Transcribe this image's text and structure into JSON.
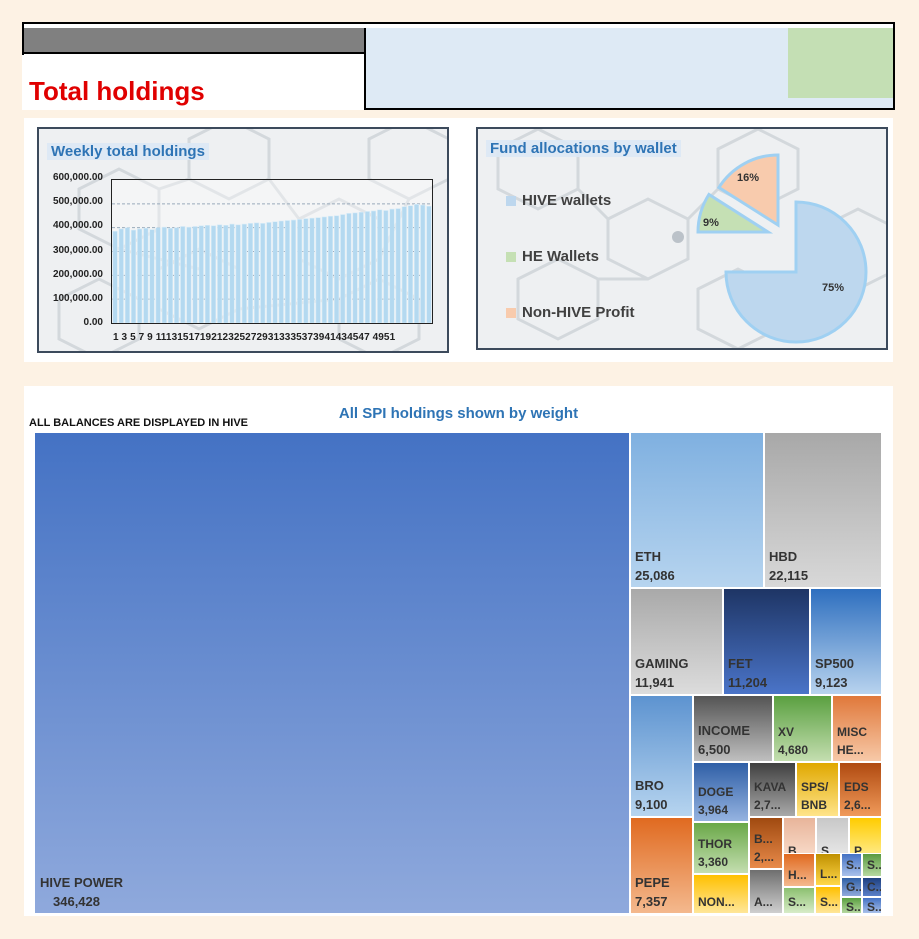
{
  "header": {
    "title": "Total holdings"
  },
  "weekly_chart": {
    "title": "Weekly total holdings",
    "chart_data": {
      "type": "bar",
      "title": "Weekly total holdings",
      "xlabel": "",
      "ylabel": "",
      "ylim": [
        0,
        600000
      ],
      "grid": true,
      "y_ticks": [
        "0.00",
        "100,000.00",
        "200,000.00",
        "300,000.00",
        "400,000.00",
        "500,000.00",
        "600,000.00"
      ],
      "x_ticks_label": "1 3 5 7 9 11131517192123252729313335373941434547 4951",
      "categories": [
        1,
        2,
        3,
        4,
        5,
        6,
        7,
        8,
        9,
        10,
        11,
        12,
        13,
        14,
        15,
        16,
        17,
        18,
        19,
        20,
        21,
        22,
        23,
        24,
        25,
        26,
        27,
        28,
        29,
        30,
        31,
        32,
        33,
        34,
        35,
        36,
        37,
        38,
        39,
        40,
        41,
        42,
        43,
        44,
        45,
        46,
        47,
        48,
        49,
        50,
        51,
        52
      ],
      "values": [
        385000,
        395000,
        400000,
        390000,
        395000,
        398000,
        392000,
        400000,
        402000,
        398000,
        400000,
        405000,
        402000,
        405000,
        408000,
        410000,
        408000,
        412000,
        410000,
        415000,
        412000,
        415000,
        418000,
        420000,
        418000,
        422000,
        425000,
        428000,
        430000,
        432000,
        435000,
        438000,
        440000,
        442000,
        445000,
        448000,
        450000,
        455000,
        460000,
        462000,
        465000,
        468000,
        470000,
        475000,
        472000,
        478000,
        480000,
        488000,
        492000,
        498000,
        495000,
        490000
      ]
    }
  },
  "alloc_chart": {
    "title": "Fund allocations by wallet",
    "chart_data": {
      "type": "pie",
      "title": "Fund allocations by wallet",
      "legend_position": "left",
      "slices": [
        {
          "label": "HIVE wallets",
          "value": 75,
          "text": "75%",
          "color": "#bdd7ee"
        },
        {
          "label": "HE Wallets",
          "value": 9,
          "text": "9%",
          "color": "#c5e0b4"
        },
        {
          "label": "Non-HIVE Profit",
          "value": 16,
          "text": "16%",
          "color": "#f8cbad"
        }
      ]
    }
  },
  "treemap": {
    "title": "All SPI holdings shown by weight",
    "note": "ALL BALANCES ARE DISPLAYED IN HIVE",
    "chart_data": {
      "type": "treemap",
      "items": [
        {
          "name": "HIVE POWER",
          "value": "346,428"
        },
        {
          "name": "ETH",
          "value": "25,086"
        },
        {
          "name": "HBD",
          "value": "22,115"
        },
        {
          "name": "GAMING",
          "value": "11,941"
        },
        {
          "name": "FET",
          "value": "11,204"
        },
        {
          "name": "SP500",
          "value": "9,123"
        },
        {
          "name": "BRO",
          "value": "9,100"
        },
        {
          "name": "INCOME",
          "value": "6,500"
        },
        {
          "name": "XV",
          "value": "4,680"
        },
        {
          "name": "MISC",
          "value": "HE..."
        },
        {
          "name": "DOGE",
          "value": "3,964"
        },
        {
          "name": "KAVA",
          "value": "2,7..."
        },
        {
          "name": "SPS/",
          "value": "BNB"
        },
        {
          "name": "EDS",
          "value": "2,6..."
        },
        {
          "name": "THOR",
          "value": "3,360"
        },
        {
          "name": "B...",
          "value": "2,..."
        },
        {
          "name": "B...",
          "value": ""
        },
        {
          "name": "S...",
          "value": ""
        },
        {
          "name": "P...",
          "value": ""
        },
        {
          "name": "PEPE",
          "value": "7,357"
        },
        {
          "name": "NON...",
          "value": ""
        },
        {
          "name": "A...",
          "value": ""
        },
        {
          "name": "H...",
          "value": ""
        },
        {
          "name": "S...",
          "value": ""
        },
        {
          "name": "L...",
          "value": ""
        },
        {
          "name": "S...",
          "value": ""
        },
        {
          "name": "S...",
          "value": ""
        },
        {
          "name": "S...",
          "value": ""
        },
        {
          "name": "G...",
          "value": ""
        },
        {
          "name": "C...",
          "value": ""
        },
        {
          "name": "S...",
          "value": ""
        },
        {
          "name": "S...",
          "value": ""
        }
      ]
    }
  },
  "colors": {
    "title_red": "#e00000",
    "chart_title_blue": "#2e74b5"
  }
}
